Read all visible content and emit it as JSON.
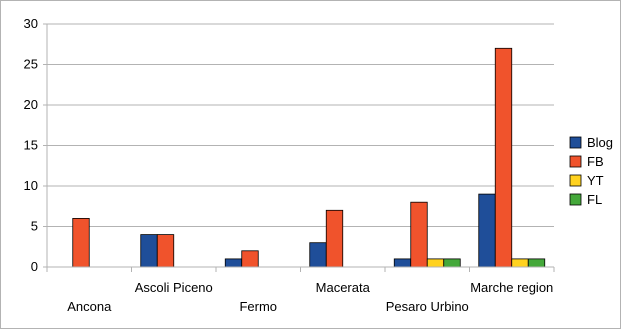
{
  "chart_data": {
    "type": "bar",
    "title": "",
    "xlabel": "",
    "ylabel": "",
    "categories": [
      "Ancona",
      "Ascoli Piceno",
      "Fermo",
      "Macerata",
      "Pesaro Urbino",
      "Marche region"
    ],
    "series": [
      {
        "name": "Blog",
        "values": [
          0,
          4,
          1,
          3,
          1,
          9
        ],
        "color": "#1f4e99"
      },
      {
        "name": "FB",
        "values": [
          6,
          4,
          2,
          7,
          8,
          27
        ],
        "color": "#f0532c"
      },
      {
        "name": "YT",
        "values": [
          0,
          0,
          0,
          0,
          1,
          1
        ],
        "color": "#ffd21f"
      },
      {
        "name": "FL",
        "values": [
          0,
          0,
          0,
          0,
          1,
          1
        ],
        "color": "#44a83a"
      }
    ],
    "ylim": [
      0,
      30
    ],
    "yticks": [
      0,
      5,
      10,
      15,
      20,
      25,
      30
    ],
    "grid": true,
    "legend": "right"
  }
}
